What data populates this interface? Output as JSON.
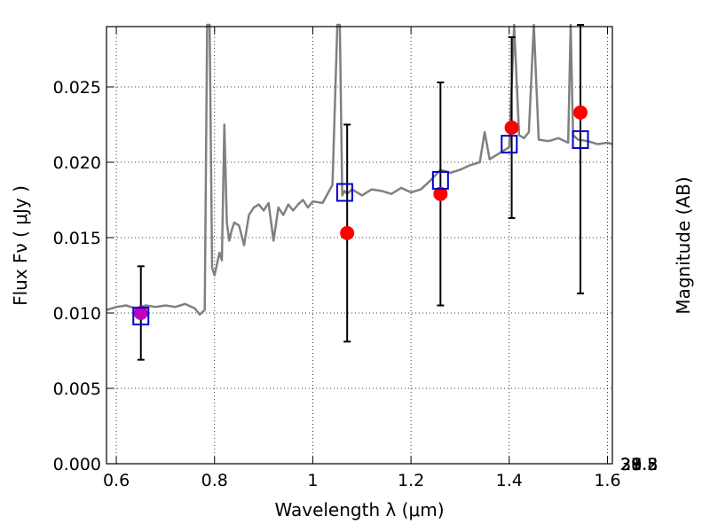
{
  "chart_data": {
    "type": "scatter",
    "xlabel": "Wavelength  λ (μm)",
    "ylabel": "Flux  Fν  ( μJy )",
    "y2label": "Magnitude (AB)",
    "xlim": [
      0.58,
      1.61
    ],
    "ylim": [
      0.0,
      0.029
    ],
    "grid": true,
    "x_ticks": [
      {
        "value": 0.6,
        "label": "0.6"
      },
      {
        "value": 0.8,
        "label": "0.8"
      },
      {
        "value": 1.0,
        "label": "1"
      },
      {
        "value": 1.2,
        "label": "1.2"
      },
      {
        "value": 1.4,
        "label": "1.4"
      },
      {
        "value": 1.6,
        "label": "1.6"
      }
    ],
    "y_ticks": [
      {
        "value": 0.0,
        "label": "0.000"
      },
      {
        "value": 0.005,
        "label": "0.005"
      },
      {
        "value": 0.01,
        "label": "0.010"
      },
      {
        "value": 0.015,
        "label": "0.015"
      },
      {
        "value": 0.02,
        "label": "0.020"
      },
      {
        "value": 0.025,
        "label": "0.025"
      }
    ],
    "y2_ticks": [
      {
        "value": 27.8,
        "label": "27.8"
      },
      {
        "value": 28.0,
        "label": "28"
      },
      {
        "value": 28.2,
        "label": "28.2"
      },
      {
        "value": 28.5,
        "label": "28.5"
      },
      {
        "value": 29.0,
        "label": "29"
      },
      {
        "value": 29.5,
        "label": "29.5"
      },
      {
        "value": 30.0,
        "label": "30"
      },
      {
        "value": 31.0,
        "label": "31"
      }
    ],
    "spectrum": {
      "color": "#808080",
      "x": [
        0.58,
        0.6,
        0.62,
        0.64,
        0.66,
        0.68,
        0.7,
        0.72,
        0.74,
        0.76,
        0.77,
        0.78,
        0.785,
        0.79,
        0.795,
        0.8,
        0.81,
        0.815,
        0.82,
        0.825,
        0.83,
        0.835,
        0.84,
        0.85,
        0.86,
        0.87,
        0.88,
        0.89,
        0.9,
        0.91,
        0.92,
        0.93,
        0.94,
        0.95,
        0.96,
        0.97,
        0.98,
        0.99,
        1.0,
        1.02,
        1.04,
        1.05,
        1.055,
        1.06,
        1.065,
        1.07,
        1.08,
        1.1,
        1.12,
        1.14,
        1.16,
        1.18,
        1.2,
        1.22,
        1.24,
        1.26,
        1.28,
        1.3,
        1.32,
        1.34,
        1.35,
        1.36,
        1.38,
        1.4,
        1.41,
        1.42,
        1.43,
        1.44,
        1.45,
        1.46,
        1.48,
        1.5,
        1.52,
        1.525,
        1.53,
        1.54,
        1.56,
        1.58,
        1.6,
        1.61
      ],
      "y": [
        0.0102,
        0.0104,
        0.0105,
        0.0103,
        0.0105,
        0.0104,
        0.0105,
        0.0104,
        0.0106,
        0.0103,
        0.0099,
        0.0102,
        0.03,
        0.03,
        0.013,
        0.0125,
        0.014,
        0.0135,
        0.0225,
        0.016,
        0.0148,
        0.0155,
        0.016,
        0.0158,
        0.0145,
        0.0165,
        0.017,
        0.0172,
        0.0168,
        0.0173,
        0.0148,
        0.017,
        0.0165,
        0.0172,
        0.0168,
        0.0172,
        0.0175,
        0.017,
        0.0174,
        0.0173,
        0.0185,
        0.03,
        0.03,
        0.0178,
        0.0181,
        0.0179,
        0.0182,
        0.0178,
        0.0182,
        0.0181,
        0.0179,
        0.0183,
        0.018,
        0.0182,
        0.0188,
        0.0195,
        0.0193,
        0.0195,
        0.0198,
        0.02,
        0.022,
        0.0202,
        0.0206,
        0.021,
        0.03,
        0.0218,
        0.0216,
        0.022,
        0.03,
        0.0215,
        0.0214,
        0.0216,
        0.0213,
        0.03,
        0.0218,
        0.0215,
        0.0214,
        0.0212,
        0.0213,
        0.0212
      ]
    },
    "series": [
      {
        "marker": "circle",
        "color": "#ff0000",
        "x": [
          1.07,
          1.26,
          1.405,
          1.545
        ],
        "y": [
          0.0153,
          0.0179,
          0.0223,
          0.0233
        ],
        "yerr": [
          0.0072,
          0.0074,
          0.006,
          0.012
        ]
      },
      {
        "marker": "circle",
        "color": "#bf00bf",
        "x": [
          0.65
        ],
        "y": [
          0.01
        ],
        "yerr": [
          0.0031
        ]
      },
      {
        "marker": "square",
        "color": "#0000cc",
        "x": [
          0.65,
          1.065,
          1.26,
          1.4,
          1.545
        ],
        "y": [
          0.0098,
          0.018,
          0.0188,
          0.0212,
          0.0215
        ]
      }
    ]
  }
}
